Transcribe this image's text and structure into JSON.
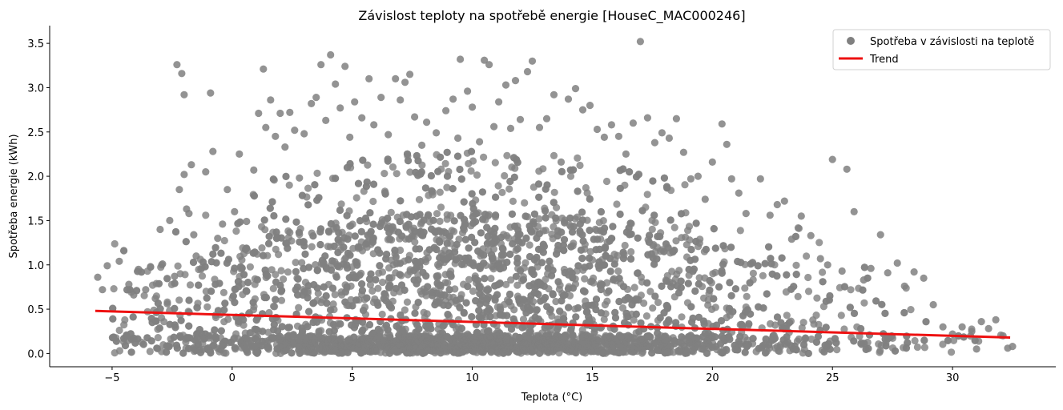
{
  "chart_data": {
    "type": "scatter",
    "title": "Závislost teploty na spotřebě energie [HouseC_MAC000246]",
    "xlabel": "Teplota (°C)",
    "ylabel": "Spotřeba energie (kWh)",
    "xlim": [
      -7.6,
      34.3
    ],
    "ylim": [
      -0.15,
      3.7
    ],
    "x_ticks": [
      -5,
      0,
      5,
      10,
      15,
      20,
      25,
      30
    ],
    "x_tick_labels": [
      "−5",
      "0",
      "5",
      "10",
      "15",
      "20",
      "25",
      "30"
    ],
    "y_ticks": [
      0.0,
      0.5,
      1.0,
      1.5,
      2.0,
      2.5,
      3.0,
      3.5
    ],
    "y_tick_labels": [
      "0.0",
      "0.5",
      "1.0",
      "1.5",
      "2.0",
      "2.5",
      "3.0",
      "3.5"
    ],
    "grid": false,
    "legend_position": "top-right",
    "series": [
      {
        "name": "Spotřeba v závislosti na teplotě",
        "kind": "scatter",
        "color": "#808080",
        "points": [
          [
            -5.6,
            0.86
          ],
          [
            -5.4,
            0.72
          ],
          [
            -5.2,
            0.99
          ],
          [
            -4.7,
            1.04
          ],
          [
            -4.3,
            0.78
          ],
          [
            -4.1,
            0.66
          ],
          [
            -3.9,
            0.95
          ],
          [
            -3.6,
            0.72
          ],
          [
            -3.4,
            0.98
          ],
          [
            -3.2,
            0.62
          ],
          [
            -3.0,
            1.4
          ],
          [
            -2.9,
            1.01
          ],
          [
            -2.7,
            0.56
          ],
          [
            -2.6,
            1.5
          ],
          [
            -2.4,
            0.87
          ],
          [
            -2.3,
            3.26
          ],
          [
            -2.2,
            1.85
          ],
          [
            -2.1,
            3.16
          ],
          [
            -2.0,
            2.92
          ],
          [
            -2.0,
            2.02
          ],
          [
            -1.9,
            1.63
          ],
          [
            -1.8,
            1.58
          ],
          [
            -1.7,
            2.13
          ],
          [
            -1.6,
            1.34
          ],
          [
            -1.5,
            1.1
          ],
          [
            -1.3,
            0.95
          ],
          [
            -1.1,
            2.05
          ],
          [
            -0.9,
            2.94
          ],
          [
            -0.8,
            2.28
          ],
          [
            -0.6,
            1.3
          ],
          [
            -0.4,
            1.46
          ],
          [
            -0.2,
            1.85
          ],
          [
            0.1,
            1.6
          ],
          [
            0.3,
            2.25
          ],
          [
            0.6,
            1.49
          ],
          [
            0.9,
            2.07
          ],
          [
            1.1,
            2.71
          ],
          [
            1.3,
            3.21
          ],
          [
            1.4,
            2.55
          ],
          [
            1.6,
            2.86
          ],
          [
            1.8,
            2.45
          ],
          [
            2.0,
            2.71
          ],
          [
            2.2,
            2.33
          ],
          [
            2.4,
            2.72
          ],
          [
            2.6,
            2.52
          ],
          [
            2.8,
            1.98
          ],
          [
            3.0,
            2.48
          ],
          [
            3.3,
            2.82
          ],
          [
            3.5,
            2.89
          ],
          [
            3.7,
            3.26
          ],
          [
            3.9,
            2.63
          ],
          [
            4.1,
            3.37
          ],
          [
            4.3,
            3.04
          ],
          [
            4.5,
            2.77
          ],
          [
            4.7,
            3.24
          ],
          [
            4.9,
            2.44
          ],
          [
            5.1,
            2.84
          ],
          [
            5.4,
            2.66
          ],
          [
            5.7,
            3.1
          ],
          [
            5.9,
            2.58
          ],
          [
            6.2,
            2.89
          ],
          [
            6.5,
            2.47
          ],
          [
            6.8,
            3.1
          ],
          [
            7.0,
            2.86
          ],
          [
            7.2,
            3.06
          ],
          [
            7.4,
            3.15
          ],
          [
            7.6,
            2.67
          ],
          [
            7.9,
            2.35
          ],
          [
            8.1,
            2.61
          ],
          [
            8.5,
            2.49
          ],
          [
            8.9,
            2.74
          ],
          [
            9.2,
            2.87
          ],
          [
            9.4,
            2.43
          ],
          [
            9.5,
            3.32
          ],
          [
            9.8,
            2.96
          ],
          [
            10.0,
            2.78
          ],
          [
            10.3,
            2.39
          ],
          [
            10.5,
            3.31
          ],
          [
            10.7,
            3.26
          ],
          [
            10.9,
            2.56
          ],
          [
            11.1,
            2.84
          ],
          [
            11.4,
            3.03
          ],
          [
            11.6,
            2.54
          ],
          [
            11.8,
            3.08
          ],
          [
            12.0,
            2.64
          ],
          [
            12.3,
            3.18
          ],
          [
            12.5,
            3.3
          ],
          [
            12.8,
            2.55
          ],
          [
            13.1,
            2.65
          ],
          [
            13.4,
            2.92
          ],
          [
            13.7,
            2.16
          ],
          [
            14.0,
            2.87
          ],
          [
            14.3,
            2.99
          ],
          [
            14.6,
            2.75
          ],
          [
            14.9,
            2.8
          ],
          [
            15.2,
            2.53
          ],
          [
            15.5,
            2.44
          ],
          [
            15.8,
            2.58
          ],
          [
            16.1,
            2.45
          ],
          [
            16.4,
            2.25
          ],
          [
            16.7,
            2.6
          ],
          [
            17.0,
            3.52
          ],
          [
            17.3,
            2.66
          ],
          [
            17.6,
            2.38
          ],
          [
            17.9,
            2.49
          ],
          [
            18.2,
            2.43
          ],
          [
            18.5,
            2.65
          ],
          [
            18.8,
            2.27
          ],
          [
            19.1,
            1.97
          ],
          [
            19.4,
            2.0
          ],
          [
            19.7,
            1.74
          ],
          [
            20.0,
            2.16
          ],
          [
            20.4,
            2.59
          ],
          [
            20.6,
            2.36
          ],
          [
            20.8,
            1.97
          ],
          [
            21.1,
            1.81
          ],
          [
            21.4,
            1.58
          ],
          [
            22.0,
            1.97
          ],
          [
            22.4,
            1.56
          ],
          [
            22.7,
            1.68
          ],
          [
            23.0,
            1.72
          ],
          [
            23.3,
            1.29
          ],
          [
            23.7,
            1.55
          ],
          [
            24.1,
            1.33
          ],
          [
            24.5,
            1.07
          ],
          [
            24.8,
            1.0
          ],
          [
            25.0,
            2.19
          ],
          [
            25.4,
            0.93
          ],
          [
            25.6,
            2.08
          ],
          [
            25.9,
            1.6
          ],
          [
            26.3,
            0.83
          ],
          [
            26.6,
            0.96
          ],
          [
            27.0,
            1.34
          ],
          [
            27.3,
            0.91
          ],
          [
            27.7,
            1.02
          ],
          [
            28.0,
            0.76
          ],
          [
            28.4,
            0.92
          ],
          [
            28.8,
            0.85
          ],
          [
            29.2,
            0.55
          ],
          [
            29.6,
            0.3
          ],
          [
            30.0,
            0.22
          ],
          [
            30.4,
            0.3
          ],
          [
            30.8,
            0.25
          ],
          [
            31.2,
            0.36
          ],
          [
            31.5,
            0.28
          ],
          [
            31.8,
            0.38
          ],
          [
            32.1,
            0.2
          ],
          [
            32.3,
            0.06
          ],
          [
            32.5,
            0.08
          ],
          [
            31.0,
            0.05
          ]
        ],
        "dense_cloud": {
          "x_range": [
            -5.0,
            32.5
          ],
          "y_range": [
            0.0,
            1.6
          ],
          "peak_temperature": 10,
          "approximate_count": 4500
        }
      },
      {
        "name": "Trend",
        "kind": "line",
        "color": "#ee1111",
        "x": [
          -5.7,
          32.4
        ],
        "y": [
          0.48,
          0.18
        ]
      }
    ]
  }
}
